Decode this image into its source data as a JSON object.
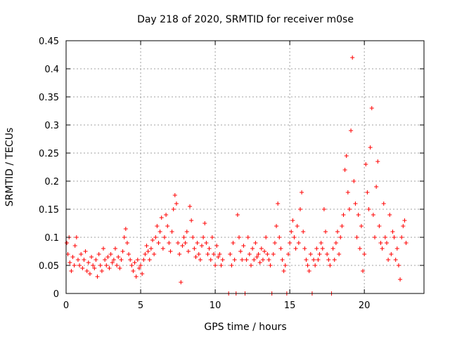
{
  "chart_data": {
    "type": "scatter",
    "title": "Day 218 of 2020, SRMTID for receiver m0se",
    "xlabel": "GPS time / hours",
    "ylabel": "SRMTID / TECUs",
    "xlim": [
      0,
      24
    ],
    "ylim": [
      0,
      0.45
    ],
    "xticks": [
      0,
      5,
      10,
      15,
      20
    ],
    "xtick_labels": [
      "0",
      "5",
      "10",
      "15",
      "20"
    ],
    "yticks": [
      0,
      0.05,
      0.1,
      0.15,
      0.2,
      0.25,
      0.3,
      0.35,
      0.4,
      0.45
    ],
    "ytick_labels": [
      "0",
      "0.05",
      "0.1",
      "0.15",
      "0.2",
      "0.25",
      "0.3",
      "0.35",
      "0.4",
      "0.45"
    ],
    "grid": true,
    "marker": "+",
    "color": "#ff0000",
    "series": [
      {
        "name": "SRMTID",
        "points": [
          [
            0.05,
            0.09
          ],
          [
            0.12,
            0.07
          ],
          [
            0.2,
            0.1
          ],
          [
            0.25,
            0.055
          ],
          [
            0.35,
            0.04
          ],
          [
            0.45,
            0.065
          ],
          [
            0.55,
            0.05
          ],
          [
            0.6,
            0.085
          ],
          [
            0.7,
            0.1
          ],
          [
            0.8,
            0.06
          ],
          [
            0.9,
            0.05
          ],
          [
            1.0,
            0.07
          ],
          [
            1.1,
            0.045
          ],
          [
            1.2,
            0.06
          ],
          [
            1.3,
            0.075
          ],
          [
            1.4,
            0.04
          ],
          [
            1.5,
            0.055
          ],
          [
            1.6,
            0.035
          ],
          [
            1.7,
            0.065
          ],
          [
            1.8,
            0.05
          ],
          [
            1.9,
            0.045
          ],
          [
            2.0,
            0.06
          ],
          [
            2.1,
            0.03
          ],
          [
            2.2,
            0.07
          ],
          [
            2.3,
            0.05
          ],
          [
            2.4,
            0.04
          ],
          [
            2.5,
            0.08
          ],
          [
            2.6,
            0.06
          ],
          [
            2.7,
            0.05
          ],
          [
            2.8,
            0.065
          ],
          [
            2.9,
            0.045
          ],
          [
            3.0,
            0.07
          ],
          [
            3.1,
            0.055
          ],
          [
            3.2,
            0.06
          ],
          [
            3.3,
            0.08
          ],
          [
            3.4,
            0.05
          ],
          [
            3.5,
            0.065
          ],
          [
            3.6,
            0.045
          ],
          [
            3.7,
            0.06
          ],
          [
            3.8,
            0.075
          ],
          [
            3.9,
            0.1
          ],
          [
            4.0,
            0.115
          ],
          [
            4.1,
            0.09
          ],
          [
            4.2,
            0.07
          ],
          [
            4.3,
            0.06
          ],
          [
            4.4,
            0.05
          ],
          [
            4.5,
            0.04
          ],
          [
            4.6,
            0.055
          ],
          [
            4.7,
            0.03
          ],
          [
            4.8,
            0.06
          ],
          [
            4.9,
            0.045
          ],
          [
            5.0,
            0.05
          ],
          [
            5.1,
            0.035
          ],
          [
            5.2,
            0.06
          ],
          [
            5.3,
            0.07
          ],
          [
            5.4,
            0.085
          ],
          [
            5.5,
            0.075
          ],
          [
            5.6,
            0.06
          ],
          [
            5.7,
            0.08
          ],
          [
            5.8,
            0.095
          ],
          [
            5.9,
            0.07
          ],
          [
            6.0,
            0.1
          ],
          [
            6.1,
            0.12
          ],
          [
            6.2,
            0.09
          ],
          [
            6.3,
            0.11
          ],
          [
            6.4,
            0.135
          ],
          [
            6.5,
            0.08
          ],
          [
            6.6,
            0.1
          ],
          [
            6.7,
            0.14
          ],
          [
            6.8,
            0.12
          ],
          [
            6.9,
            0.09
          ],
          [
            7.0,
            0.075
          ],
          [
            7.1,
            0.11
          ],
          [
            7.2,
            0.15
          ],
          [
            7.3,
            0.175
          ],
          [
            7.4,
            0.16
          ],
          [
            7.5,
            0.09
          ],
          [
            7.6,
            0.07
          ],
          [
            7.7,
            0.02
          ],
          [
            7.8,
            0.085
          ],
          [
            7.9,
            0.1
          ],
          [
            8.0,
            0.09
          ],
          [
            8.1,
            0.11
          ],
          [
            8.2,
            0.075
          ],
          [
            8.3,
            0.155
          ],
          [
            8.4,
            0.13
          ],
          [
            8.5,
            0.1
          ],
          [
            8.6,
            0.08
          ],
          [
            8.7,
            0.065
          ],
          [
            8.8,
            0.09
          ],
          [
            8.9,
            0.07
          ],
          [
            9.0,
            0.06
          ],
          [
            9.1,
            0.085
          ],
          [
            9.2,
            0.1
          ],
          [
            9.3,
            0.125
          ],
          [
            9.4,
            0.09
          ],
          [
            9.5,
            0.07
          ],
          [
            9.6,
            0.08
          ],
          [
            9.7,
            0.06
          ],
          [
            9.8,
            0.1
          ],
          [
            9.9,
            0.07
          ],
          [
            10.0,
            0.05
          ],
          [
            10.1,
            0.085
          ],
          [
            10.2,
            0.065
          ],
          [
            10.3,
            0.07
          ],
          [
            10.4,
            0.05
          ],
          [
            10.5,
            0.06
          ],
          [
            10.9,
            0.0
          ],
          [
            11.0,
            0.07
          ],
          [
            11.1,
            0.05
          ],
          [
            11.2,
            0.09
          ],
          [
            11.3,
            0.06
          ],
          [
            11.4,
            0.0
          ],
          [
            11.5,
            0.14
          ],
          [
            11.6,
            0.1
          ],
          [
            11.7,
            0.075
          ],
          [
            11.8,
            0.06
          ],
          [
            11.9,
            0.085
          ],
          [
            12.0,
            0.0
          ],
          [
            12.1,
            0.06
          ],
          [
            12.2,
            0.1
          ],
          [
            12.3,
            0.07
          ],
          [
            12.4,
            0.05
          ],
          [
            12.5,
            0.08
          ],
          [
            12.6,
            0.06
          ],
          [
            12.7,
            0.09
          ],
          [
            12.8,
            0.065
          ],
          [
            12.9,
            0.07
          ],
          [
            13.0,
            0.055
          ],
          [
            13.1,
            0.08
          ],
          [
            13.2,
            0.06
          ],
          [
            13.3,
            0.075
          ],
          [
            13.4,
            0.1
          ],
          [
            13.5,
            0.07
          ],
          [
            13.6,
            0.06
          ],
          [
            13.7,
            0.05
          ],
          [
            13.8,
            0.0
          ],
          [
            13.9,
            0.07
          ],
          [
            14.0,
            0.09
          ],
          [
            14.1,
            0.12
          ],
          [
            14.2,
            0.16
          ],
          [
            14.3,
            0.1
          ],
          [
            14.4,
            0.08
          ],
          [
            14.5,
            0.06
          ],
          [
            14.6,
            0.04
          ],
          [
            14.7,
            0.05
          ],
          [
            14.8,
            0.0
          ],
          [
            14.9,
            0.07
          ],
          [
            15.0,
            0.09
          ],
          [
            15.1,
            0.11
          ],
          [
            15.2,
            0.13
          ],
          [
            15.3,
            0.1
          ],
          [
            15.4,
            0.08
          ],
          [
            15.5,
            0.12
          ],
          [
            15.6,
            0.09
          ],
          [
            15.7,
            0.15
          ],
          [
            15.8,
            0.18
          ],
          [
            15.9,
            0.11
          ],
          [
            16.0,
            0.08
          ],
          [
            16.1,
            0.06
          ],
          [
            16.2,
            0.05
          ],
          [
            16.3,
            0.04
          ],
          [
            16.4,
            0.07
          ],
          [
            16.5,
            0.0
          ],
          [
            16.6,
            0.06
          ],
          [
            16.7,
            0.05
          ],
          [
            16.8,
            0.08
          ],
          [
            16.9,
            0.06
          ],
          [
            17.0,
            0.07
          ],
          [
            17.1,
            0.09
          ],
          [
            17.2,
            0.08
          ],
          [
            17.3,
            0.15
          ],
          [
            17.4,
            0.11
          ],
          [
            17.5,
            0.07
          ],
          [
            17.6,
            0.06
          ],
          [
            17.7,
            0.05
          ],
          [
            17.8,
            0.0
          ],
          [
            17.9,
            0.08
          ],
          [
            18.0,
            0.06
          ],
          [
            18.1,
            0.09
          ],
          [
            18.2,
            0.11
          ],
          [
            18.3,
            0.07
          ],
          [
            18.4,
            0.1
          ],
          [
            18.5,
            0.12
          ],
          [
            18.6,
            0.14
          ],
          [
            18.7,
            0.22
          ],
          [
            18.8,
            0.245
          ],
          [
            18.9,
            0.18
          ],
          [
            19.0,
            0.15
          ],
          [
            19.1,
            0.29
          ],
          [
            19.2,
            0.42
          ],
          [
            19.3,
            0.2
          ],
          [
            19.4,
            0.16
          ],
          [
            19.5,
            0.1
          ],
          [
            19.6,
            0.14
          ],
          [
            19.7,
            0.08
          ],
          [
            19.8,
            0.12
          ],
          [
            19.9,
            0.04
          ],
          [
            20.0,
            0.07
          ],
          [
            20.1,
            0.23
          ],
          [
            20.2,
            0.18
          ],
          [
            20.3,
            0.15
          ],
          [
            20.4,
            0.26
          ],
          [
            20.5,
            0.33
          ],
          [
            20.6,
            0.14
          ],
          [
            20.7,
            0.1
          ],
          [
            20.8,
            0.19
          ],
          [
            20.9,
            0.235
          ],
          [
            21.0,
            0.12
          ],
          [
            21.1,
            0.09
          ],
          [
            21.2,
            0.08
          ],
          [
            21.3,
            0.16
          ],
          [
            21.4,
            0.1
          ],
          [
            21.5,
            0.09
          ],
          [
            21.6,
            0.06
          ],
          [
            21.7,
            0.14
          ],
          [
            21.8,
            0.07
          ],
          [
            21.9,
            0.11
          ],
          [
            22.0,
            0.1
          ],
          [
            22.1,
            0.06
          ],
          [
            22.2,
            0.08
          ],
          [
            22.3,
            0.05
          ],
          [
            22.4,
            0.025
          ],
          [
            22.5,
            0.1
          ],
          [
            22.6,
            0.12
          ],
          [
            22.7,
            0.13
          ],
          [
            22.8,
            0.09
          ]
        ]
      }
    ]
  }
}
